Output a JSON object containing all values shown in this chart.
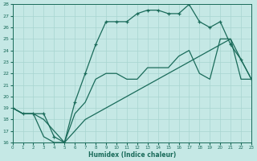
{
  "xlabel": "Humidex (Indice chaleur)",
  "ylabel": "",
  "bg_color": "#c5e8e5",
  "grid_color": "#a8d5d0",
  "line_color": "#1a6b5a",
  "xmin": 0,
  "xmax": 23,
  "ymin": 16,
  "ymax": 28,
  "hours": [
    0,
    1,
    2,
    3,
    4,
    5,
    6,
    7,
    8,
    9,
    10,
    11,
    12,
    13,
    14,
    15,
    16,
    17,
    18,
    19,
    20,
    21,
    22,
    23
  ],
  "line_top": [
    19.0,
    18.5,
    18.5,
    18.5,
    16.5,
    16.0,
    19.5,
    22.0,
    24.5,
    26.5,
    26.5,
    26.5,
    27.2,
    27.5,
    27.5,
    27.2,
    27.2,
    28.0,
    26.5,
    26.0,
    26.5,
    24.5,
    23.2,
    21.5
  ],
  "line_mid": [
    19.0,
    18.5,
    18.5,
    18.0,
    17.0,
    16.0,
    18.5,
    19.5,
    21.5,
    22.0,
    22.0,
    21.5,
    21.5,
    22.5,
    22.5,
    22.5,
    23.5,
    24.0,
    22.0,
    21.5,
    25.0,
    25.0,
    23.2,
    21.5
  ],
  "line_bot": [
    19.0,
    18.5,
    18.5,
    16.5,
    16.0,
    16.0,
    17.0,
    18.0,
    18.5,
    19.0,
    19.5,
    20.0,
    20.5,
    21.0,
    21.5,
    22.0,
    22.5,
    23.0,
    23.5,
    24.0,
    24.5,
    25.0,
    21.5,
    21.5
  ]
}
